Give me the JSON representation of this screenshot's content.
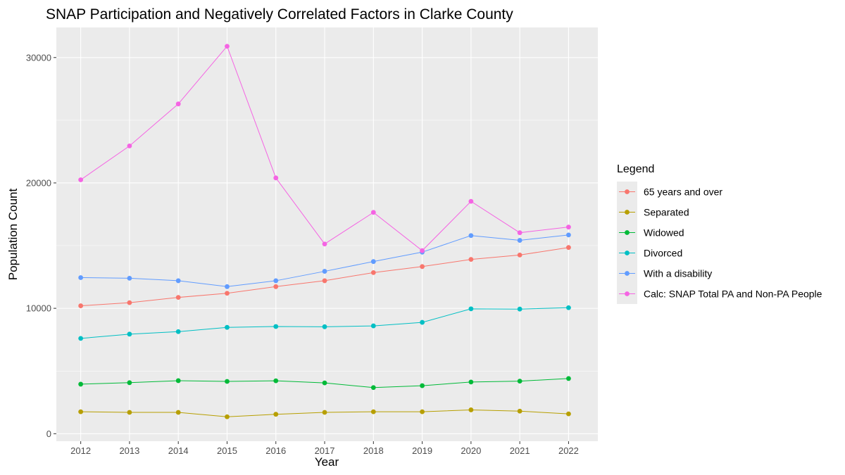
{
  "chart_data": {
    "type": "line",
    "title": "SNAP Participation and Negatively Correlated Factors in Clarke County",
    "xlabel": "Year",
    "ylabel": "Population Count",
    "x": [
      2012,
      2013,
      2014,
      2015,
      2016,
      2017,
      2018,
      2019,
      2020,
      2021,
      2022
    ],
    "x_tick_labels": [
      "2012",
      "2013",
      "2014",
      "2015",
      "2016",
      "2017",
      "2018",
      "2019",
      "2020",
      "2021",
      "2022"
    ],
    "y_ticks": [
      0,
      10000,
      20000,
      30000
    ],
    "y_tick_labels": [
      "0",
      "10000",
      "20000",
      "30000"
    ],
    "xlim": [
      2011.5,
      2022.6
    ],
    "ylim": [
      -600,
      32400
    ],
    "grid": true,
    "panel_background": "#ebebeb",
    "legend": {
      "title": "Legend",
      "position": "right"
    },
    "series": [
      {
        "name": "65 years and over",
        "color": "#F8766D",
        "values": [
          10200,
          10450,
          10870,
          11200,
          11730,
          12200,
          12850,
          13330,
          13900,
          14250,
          14850
        ]
      },
      {
        "name": "Separated",
        "color": "#B79F00",
        "values": [
          1750,
          1700,
          1700,
          1350,
          1550,
          1700,
          1750,
          1750,
          1900,
          1800,
          1580
        ]
      },
      {
        "name": "Widowed",
        "color": "#00BA38",
        "values": [
          3950,
          4070,
          4230,
          4170,
          4220,
          4050,
          3680,
          3830,
          4120,
          4190,
          4400
        ]
      },
      {
        "name": "Divorced",
        "color": "#00BFC4",
        "values": [
          7600,
          7940,
          8140,
          8480,
          8550,
          8530,
          8600,
          8880,
          9960,
          9940,
          10050
        ]
      },
      {
        "name": "With a disability",
        "color": "#619CFF",
        "values": [
          12450,
          12400,
          12200,
          11730,
          12200,
          12950,
          13730,
          14480,
          15800,
          15420,
          15850
        ]
      },
      {
        "name": "Calc: SNAP Total PA and Non-PA People",
        "color": "#F564E3",
        "values": [
          20250,
          22950,
          26300,
          30900,
          20400,
          15130,
          17650,
          14600,
          18530,
          16030,
          16480
        ]
      }
    ]
  }
}
